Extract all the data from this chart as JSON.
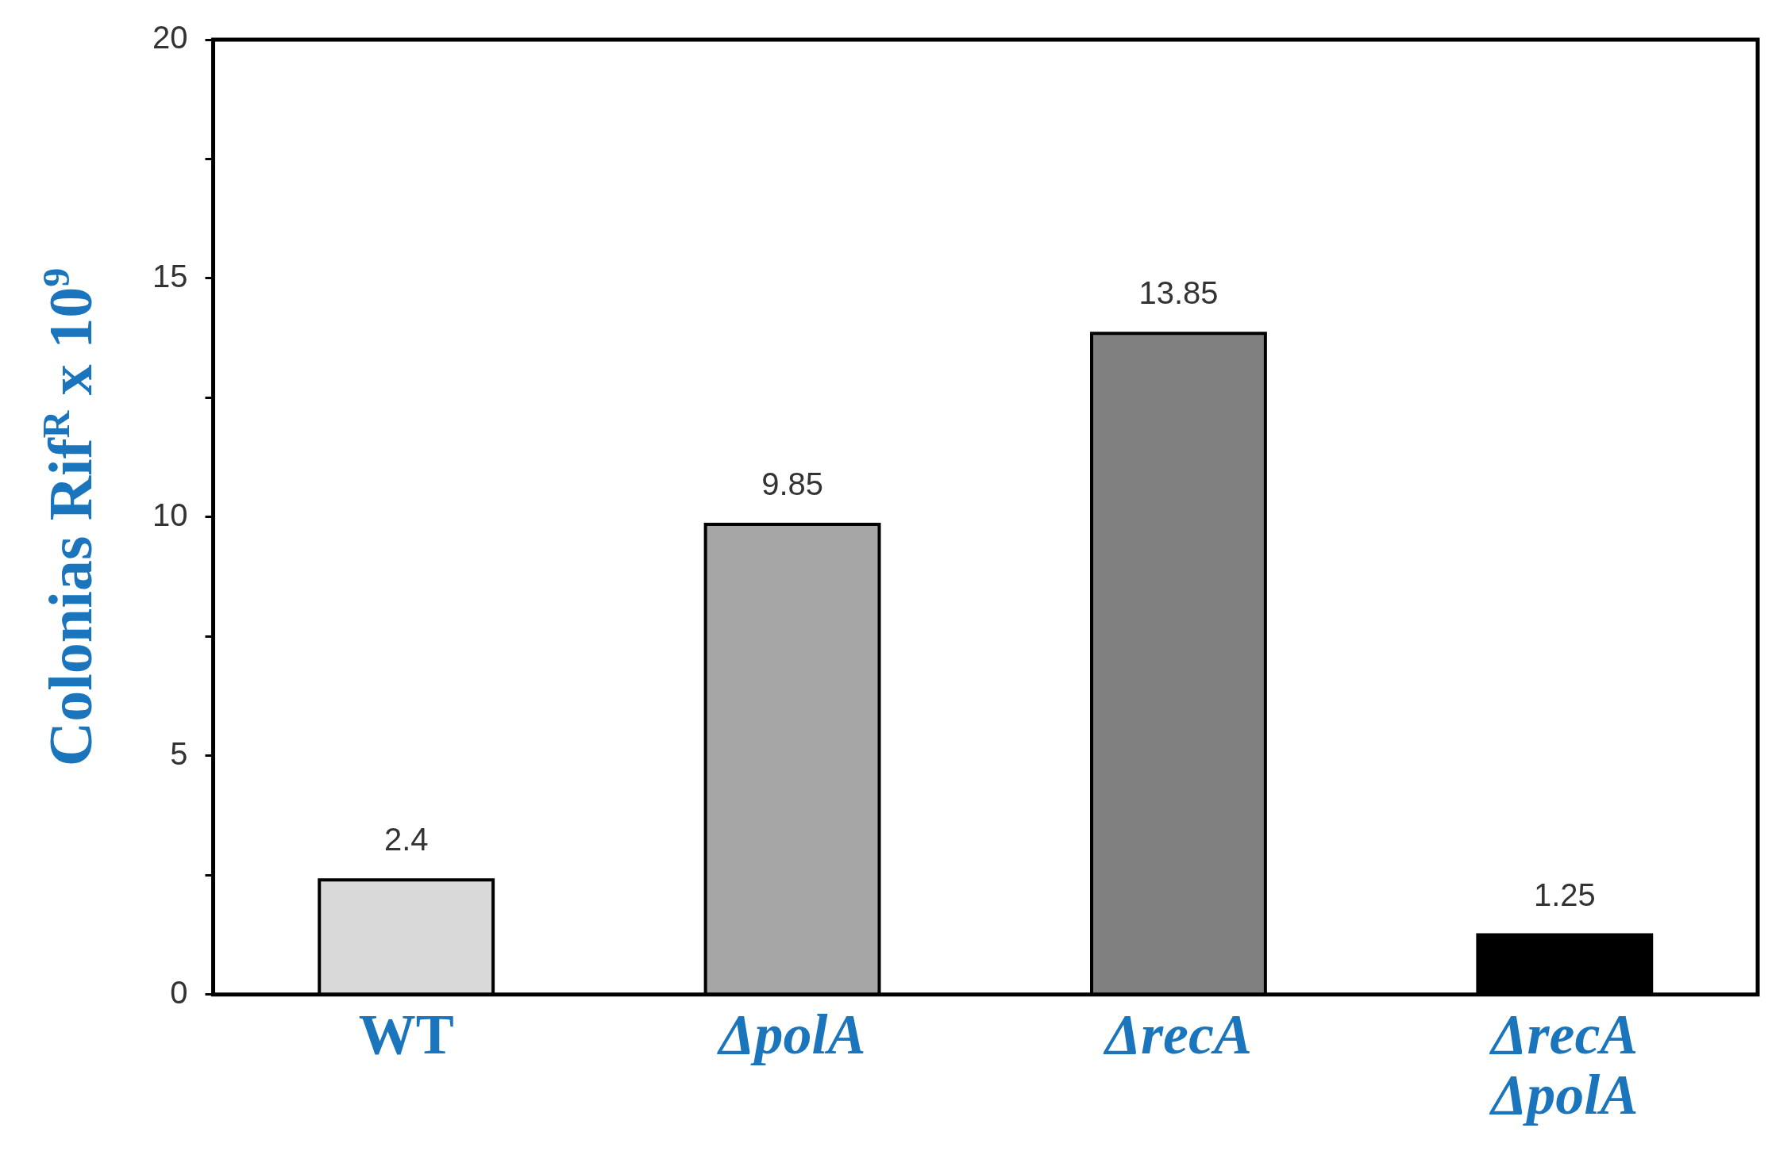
{
  "chart_data": {
    "type": "bar",
    "ylabel": "Colonias Rif$^{R}$ x 10$^{9}$",
    "categories": [
      "WT",
      "ΔpolA",
      "ΔrecA",
      "ΔrecA ΔpolA"
    ],
    "values": [
      2.4,
      9.85,
      13.85,
      1.25
    ],
    "colors": [
      "#d9d9d9",
      "#a6a6a6",
      "#808080",
      "#000000"
    ],
    "ylim": [
      0,
      20
    ],
    "yticks": [
      0,
      {
        "value": 2.5,
        "label": null
      },
      5,
      {
        "value": 7.5,
        "label": null
      },
      10,
      {
        "value": 12.5,
        "label": null
      },
      15,
      {
        "value": 17.5,
        "label": null
      },
      20
    ],
    "data_labels": true,
    "grid": false,
    "legend": false
  }
}
